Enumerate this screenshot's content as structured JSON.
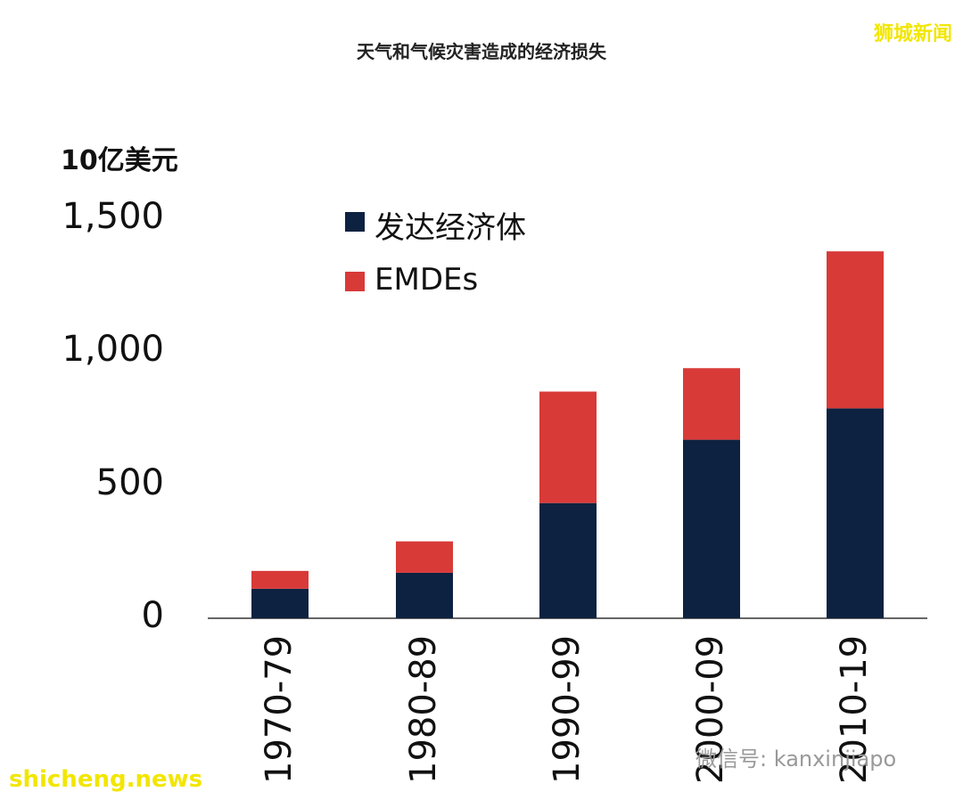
{
  "watermark_top": "狮城新闻",
  "watermark_bottom": "shicheng.news",
  "watermark_wechat": "微信号: kanxinjiapo",
  "chart_data": {
    "type": "bar",
    "stacked": true,
    "title": "天气和气候灾害造成的经济损失",
    "ylabel": "10亿美元",
    "xlabel": "",
    "ylim": [
      0,
      1500
    ],
    "yticks": [
      "0",
      "500",
      "1,000",
      "1,500"
    ],
    "ytick_values": [
      0,
      500,
      1000,
      1500
    ],
    "categories": [
      "1970-79",
      "1980-89",
      "1990-99",
      "2000-09",
      "2010-19"
    ],
    "series": [
      {
        "name": "发达经济体",
        "color": "#0d2240",
        "values": [
          111,
          171,
          433,
          671,
          789
        ]
      },
      {
        "name": "EMDEs",
        "color": "#d83a38",
        "values": [
          67,
          118,
          419,
          269,
          590
        ]
      }
    ],
    "legend": "top-left",
    "grid": false
  }
}
